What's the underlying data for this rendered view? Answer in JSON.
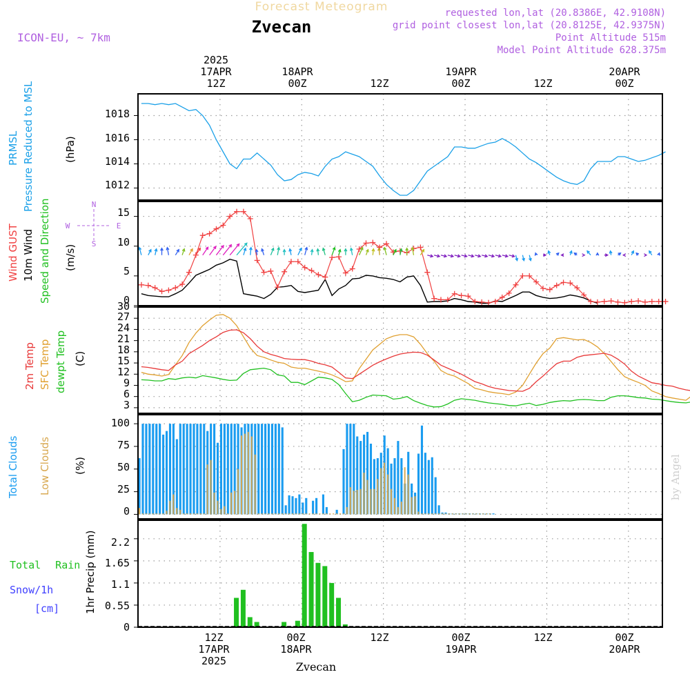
{
  "header": {
    "product": "Forecast Meteogram",
    "location": "Zvecan",
    "model": "ICON-EU, ~ 7km",
    "requested": "requested lon,lat (20.8386E, 42.9108N)",
    "grid": "grid point closest lon,lat (20.8125E, 42.9375N)",
    "point_altitude": "Point Altitude 515m",
    "model_altitude": "Model Point Altitude 628.375m",
    "credit": "by Angel",
    "footer_location": "Zvecan"
  },
  "time_axis": {
    "top_labels": [
      {
        "line1": "2025",
        "line2": "17APR",
        "line3": "12Z",
        "hour": 12
      },
      {
        "line1": "",
        "line2": "18APR",
        "line3": "00Z",
        "hour": 24
      },
      {
        "line1": "",
        "line2": "",
        "line3": "12Z",
        "hour": 36
      },
      {
        "line1": "",
        "line2": "19APR",
        "line3": "00Z",
        "hour": 48
      },
      {
        "line1": "",
        "line2": "",
        "line3": "12Z",
        "hour": 60
      },
      {
        "line1": "",
        "line2": "20APR",
        "line3": "00Z",
        "hour": 72
      }
    ],
    "bottom_labels": [
      {
        "line1": "12Z",
        "line2": "17APR",
        "line3": "2025",
        "hour": 12
      },
      {
        "line1": "00Z",
        "line2": "18APR",
        "line3": "",
        "hour": 24
      },
      {
        "line1": "12Z",
        "line2": "",
        "line3": "",
        "hour": 36
      },
      {
        "line1": "00Z",
        "line2": "19APR",
        "line3": "",
        "hour": 48
      },
      {
        "line1": "12Z",
        "line2": "",
        "line3": "",
        "hour": 60
      },
      {
        "line1": "00Z",
        "line2": "20APR",
        "line3": "",
        "hour": 72
      }
    ],
    "start": "17APR 01Z",
    "hours": 77
  },
  "panels": {
    "pressure": {
      "labels": [
        "PRMSL",
        "Pressure Reduced to MSL"
      ],
      "unit": "(hPa)",
      "ticks": [
        "1012",
        "1014",
        "1016",
        "1018"
      ],
      "color": "#1aa0e8"
    },
    "wind": {
      "labels": [
        "Wind GUST",
        "10m Wind",
        "Speed and Direction"
      ],
      "unit": "(m/s)",
      "ticks": [
        "0",
        "5",
        "10",
        "15"
      ],
      "compass": {
        "n": "N",
        "s": "S",
        "w": "W",
        "e": "E"
      },
      "gust_color": "#f04040",
      "wind_color": "#000000"
    },
    "temp": {
      "labels": [
        "2m Temp",
        "SFC Temp",
        "dewpt Temp"
      ],
      "unit": "(C)",
      "ticks": [
        "3",
        "6",
        "9",
        "12",
        "15",
        "18",
        "21",
        "24",
        "27",
        "30"
      ],
      "t2m_color": "#e83838",
      "sfc_color": "#e0a030",
      "dew_color": "#20c020"
    },
    "clouds": {
      "labels": [
        "Total Clouds",
        "Low Clouds"
      ],
      "unit": "(%)",
      "ticks": [
        "0",
        "25",
        "50",
        "75",
        "100"
      ],
      "total_color": "#1a9cf0",
      "low_color": "#d8a850"
    },
    "precip": {
      "labels": [
        "Total Rain",
        "Snow/1h",
        "[cm]"
      ],
      "unit": "1hr Precip (mm)",
      "ticks": [
        "0",
        "0.55",
        "1.1",
        "1.65",
        "2.2"
      ],
      "rain_color": "#20c020",
      "snow_color": "#4040ff"
    }
  },
  "chart_data": [
    {
      "type": "line",
      "title": "PRMSL Pressure Reduced to MSL",
      "ylabel": "(hPa)",
      "ylim": [
        1011,
        1019.8
      ],
      "x_start_hour": 0,
      "series": [
        {
          "name": "PRMSL",
          "values": [
            1019.0,
            1019.0,
            1018.9,
            1019.0,
            1018.9,
            1019.0,
            1018.7,
            1018.4,
            1018.5,
            1018.0,
            1017.2,
            1016.0,
            1015.0,
            1014.0,
            1013.6,
            1014.4,
            1014.4,
            1014.9,
            1014.4,
            1013.9,
            1013.1,
            1012.6,
            1012.7,
            1013.1,
            1013.3,
            1013.2,
            1013.0,
            1013.8,
            1014.4,
            1014.6,
            1015.0,
            1014.8,
            1014.6,
            1014.2,
            1013.8,
            1013.0,
            1012.3,
            1011.8,
            1011.4,
            1011.4,
            1011.8,
            1012.6,
            1013.4,
            1013.8,
            1014.2,
            1014.6,
            1015.4,
            1015.4,
            1015.3,
            1015.3,
            1015.5,
            1015.7,
            1015.8,
            1016.1,
            1015.8,
            1015.4,
            1014.9,
            1014.4,
            1014.1,
            1013.7,
            1013.3,
            1012.9,
            1012.6,
            1012.4,
            1012.3,
            1012.6,
            1013.6,
            1014.2,
            1014.2,
            1014.2,
            1014.6,
            1014.6,
            1014.4,
            1014.2,
            1014.3,
            1014.5,
            1014.7,
            1015.0
          ]
        }
      ]
    },
    {
      "type": "line",
      "title": "Wind GUST / 10m Wind Speed and Direction",
      "ylabel": "(m/s)",
      "ylim": [
        0,
        17.5
      ],
      "x_start_hour": 0,
      "series": [
        {
          "name": "Wind GUST",
          "values": [
            3.5,
            3.4,
            3.0,
            2.4,
            2.6,
            3.0,
            3.6,
            5.6,
            8.5,
            11.8,
            12.1,
            12.9,
            13.5,
            15.0,
            15.8,
            15.8,
            14.6,
            7.6,
            5.6,
            5.8,
            3.1,
            5.7,
            7.4,
            7.4,
            6.4,
            5.9,
            5.2,
            4.8,
            8.1,
            8.2,
            5.5,
            6.2,
            9.5,
            10.5,
            10.6,
            9.8,
            10.4,
            9.0,
            9.2,
            8.9,
            9.6,
            9.8,
            5.6,
            1.2,
            1.0,
            1.0,
            2.0,
            1.7,
            1.6,
            0.7,
            0.6,
            0.5,
            0.7,
            1.4,
            2.1,
            3.5,
            5.0,
            5.0,
            4.0,
            2.9,
            2.7,
            3.4,
            3.9,
            3.8,
            3.0,
            1.8,
            0.7,
            0.6,
            0.7,
            0.8,
            0.6,
            0.5,
            0.7,
            0.8,
            0.6,
            0.7,
            0.7,
            0.7
          ]
        },
        {
          "name": "10m Wind",
          "values": [
            2.0,
            1.7,
            1.6,
            1.5,
            1.5,
            2.0,
            2.6,
            3.8,
            5.1,
            5.6,
            6.1,
            6.8,
            7.2,
            7.8,
            7.5,
            2.0,
            1.8,
            1.6,
            1.2,
            1.9,
            3.1,
            3.2,
            3.4,
            2.4,
            2.2,
            2.4,
            2.6,
            4.4,
            1.7,
            2.8,
            3.4,
            4.5,
            4.6,
            5.1,
            5.0,
            4.7,
            4.6,
            4.4,
            4.0,
            4.8,
            5.0,
            3.4,
            0.6,
            0.7,
            0.7,
            0.8,
            1.2,
            1.0,
            0.7,
            0.6,
            0.4,
            0.4,
            0.8,
            0.7,
            1.2,
            1.7,
            2.3,
            2.3,
            1.7,
            1.4,
            1.2,
            1.3,
            1.5,
            1.8,
            1.6,
            1.3,
            0.8,
            0.4
          ]
        }
      ],
      "arrow_level": 8.5
    },
    {
      "type": "line",
      "title": "2m Temp / SFC Temp / dewpt Temp",
      "ylabel": "(C)",
      "ylim": [
        1.5,
        30
      ],
      "x_start_hour": 0,
      "series": [
        {
          "name": "2m Temp",
          "values": [
            14.0,
            13.8,
            13.5,
            13.2,
            13.0,
            14.5,
            15.5,
            17.5,
            18.6,
            19.7,
            21.0,
            22.0,
            23.2,
            23.8,
            23.9,
            23.1,
            21.5,
            19.5,
            18.0,
            17.3,
            16.8,
            16.2,
            16.0,
            15.9,
            15.9,
            15.5,
            14.9,
            14.5,
            13.9,
            12.5,
            11.0,
            10.8,
            12.0,
            13.2,
            14.4,
            15.3,
            16.1,
            16.8,
            17.4,
            17.7,
            17.9,
            17.8,
            17.1,
            15.8,
            14.4,
            13.6,
            12.8,
            12.0,
            11.0,
            10.0,
            9.4,
            8.7,
            8.2,
            7.9,
            7.6,
            7.5,
            7.4,
            8.2,
            10.0,
            11.5,
            13.2,
            14.8,
            15.5,
            15.5,
            16.5,
            17.0,
            17.2,
            17.4,
            17.6,
            17.1,
            16.0,
            14.7,
            12.8,
            11.5,
            10.6,
            9.7,
            9.4,
            9.0,
            8.8,
            8.2,
            7.8,
            7.5
          ]
        },
        {
          "name": "SFC Temp",
          "values": [
            12.5,
            12.0,
            11.8,
            11.5,
            11.9,
            14.5,
            17.0,
            20.5,
            23.0,
            25.0,
            26.5,
            27.8,
            28.0,
            27.0,
            25.0,
            22.0,
            19.0,
            17.0,
            16.5,
            15.8,
            15.2,
            14.9,
            13.9,
            13.6,
            13.6,
            13.2,
            12.8,
            12.4,
            11.8,
            11.0,
            10.0,
            10.2,
            13.5,
            16.0,
            18.5,
            20.0,
            21.5,
            22.2,
            22.6,
            22.6,
            22.0,
            20.0,
            17.5,
            15.5,
            13.0,
            12.0,
            11.5,
            10.5,
            9.5,
            8.2,
            7.8,
            7.3,
            7.0,
            6.8,
            6.5,
            7.2,
            9.0,
            12.0,
            15.0,
            17.5,
            19.0,
            21.5,
            21.8,
            21.5,
            21.2,
            21.3,
            20.5,
            19.3,
            17.5,
            15.4,
            13.2,
            11.3,
            10.5,
            9.8,
            9.0,
            7.5,
            6.8,
            6.0,
            5.6,
            5.3,
            5.0,
            6.4
          ]
        },
        {
          "name": "dewpt Temp",
          "values": [
            10.5,
            10.4,
            10.2,
            10.2,
            10.8,
            10.6,
            11.0,
            11.2,
            11.0,
            11.6,
            11.3,
            11.0,
            10.6,
            10.3,
            10.4,
            12.2,
            13.2,
            13.4,
            13.6,
            13.2,
            11.8,
            11.5,
            9.8,
            9.8,
            9.2,
            10.2,
            11.2,
            11.0,
            10.6,
            9.2,
            6.8,
            4.6,
            5.0,
            5.8,
            6.4,
            6.3,
            6.2,
            5.3,
            5.5,
            6.0,
            4.9,
            4.2,
            3.6,
            3.2,
            3.3,
            4.0,
            5.0,
            5.4,
            5.2,
            5.0,
            4.6,
            4.3,
            4.1,
            3.9,
            3.6,
            3.5,
            3.9,
            4.2,
            3.6,
            3.9,
            4.4,
            4.7,
            4.9,
            4.8,
            5.1,
            5.2,
            5.1,
            4.9,
            4.9,
            5.8,
            6.2,
            6.2,
            6.0,
            5.7,
            5.6,
            5.3,
            5.2,
            4.9,
            4.6,
            4.4,
            4.3,
            4.6
          ]
        }
      ]
    },
    {
      "type": "bar",
      "title": "Total Clouds / Low Clouds",
      "ylabel": "(%)",
      "ylim": [
        -5,
        110
      ],
      "x_start_hour": 0,
      "series": [
        {
          "name": "Total Clouds",
          "values": [
            62,
            100,
            100,
            100,
            100,
            100,
            100,
            88,
            92,
            100,
            100,
            83,
            100,
            100,
            100,
            100,
            100,
            100,
            100,
            100,
            92,
            100,
            100,
            79,
            100,
            100,
            100,
            100,
            100,
            100,
            96,
            100,
            100,
            100,
            100,
            100,
            100,
            100,
            100,
            100,
            100,
            100,
            96,
            10,
            21,
            20,
            18,
            22,
            13,
            18,
            0,
            15,
            18,
            0,
            22,
            8,
            0,
            0,
            5,
            0,
            72,
            100,
            100,
            100,
            86,
            81,
            88,
            91,
            78,
            61,
            62,
            68,
            87,
            73,
            56,
            62,
            81,
            62,
            34,
            69,
            34,
            24,
            67,
            98,
            68,
            60,
            63,
            41,
            10,
            2,
            2,
            1,
            1,
            1,
            1,
            1,
            1,
            1,
            1,
            1,
            1,
            1,
            1,
            1,
            1
          ]
        },
        {
          "name": "Low Clouds",
          "values": [
            7,
            1,
            1,
            1,
            1,
            1,
            1,
            1,
            4,
            15,
            22,
            7,
            5,
            1,
            1,
            1,
            1,
            1,
            1,
            1,
            55,
            60,
            24,
            15,
            6,
            9,
            1,
            24,
            26,
            50,
            87,
            89,
            91,
            86,
            66,
            1,
            1,
            1,
            1,
            1,
            1,
            1,
            1,
            1,
            1,
            1,
            1,
            1,
            1,
            1,
            1,
            1,
            1,
            1,
            1,
            1,
            1,
            1,
            1,
            1,
            1,
            8,
            30,
            26,
            27,
            28,
            46,
            38,
            28,
            28,
            39,
            51,
            57,
            44,
            28,
            18,
            8,
            14,
            52,
            44,
            19,
            20,
            3,
            1,
            1,
            1,
            1,
            1,
            1,
            1,
            1,
            1,
            1,
            1,
            1,
            1,
            1,
            1,
            1,
            1,
            1,
            1,
            1,
            1
          ]
        }
      ]
    },
    {
      "type": "bar",
      "title": "Total Rain / Snow 1h",
      "ylabel": "1hr Precip (mm)",
      "ylim": [
        0,
        2.66
      ],
      "x_start_hour": 0,
      "series": [
        {
          "name": "Total Rain",
          "values": [
            0,
            0,
            0,
            0,
            0,
            0,
            0,
            0,
            0,
            0,
            0,
            0,
            0,
            0,
            0.73,
            0.93,
            0.25,
            0.13,
            0,
            0,
            0,
            0.13,
            0,
            0.16,
            2.57,
            1.87,
            1.6,
            1.52,
            1.1,
            0.73,
            0.07,
            0,
            0,
            0,
            0,
            0,
            0,
            0,
            0,
            0,
            0,
            0,
            0,
            0,
            0,
            0,
            0,
            0,
            0,
            0,
            0,
            0,
            0,
            0,
            0,
            0,
            0,
            0,
            0,
            0,
            0,
            0,
            0,
            0,
            0,
            0,
            0,
            0,
            0,
            0,
            0,
            0,
            0,
            0,
            0,
            0,
            0
          ]
        },
        {
          "name": "Snow/1h",
          "values": [
            0,
            0,
            0,
            0,
            0,
            0,
            0,
            0,
            0,
            0,
            0,
            0,
            0,
            0,
            0,
            0,
            0,
            0,
            0,
            0,
            0,
            0,
            0,
            0,
            0,
            0,
            0,
            0,
            0,
            0,
            0,
            0,
            0,
            0,
            0,
            0,
            0,
            0,
            0,
            0,
            0,
            0,
            0,
            0,
            0,
            0,
            0,
            0,
            0,
            0,
            0,
            0,
            0,
            0,
            0,
            0,
            0,
            0,
            0,
            0,
            0,
            0,
            0,
            0,
            0,
            0,
            0,
            0,
            0,
            0,
            0,
            0,
            0,
            0,
            0,
            0,
            0
          ]
        }
      ]
    }
  ]
}
